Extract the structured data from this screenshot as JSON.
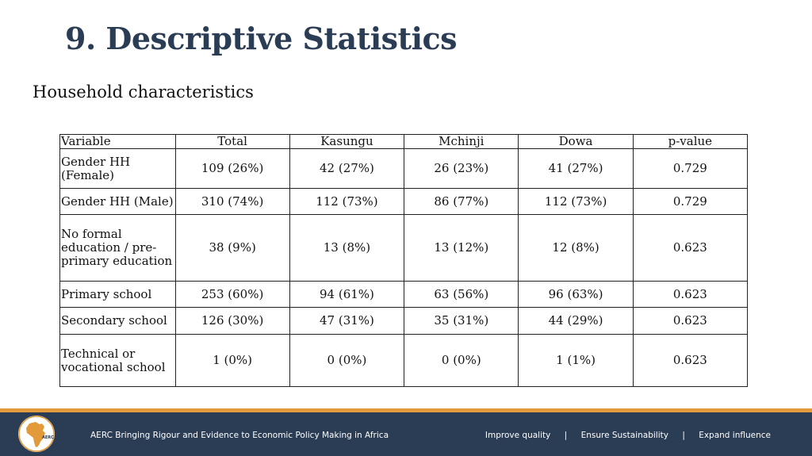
{
  "slide": {
    "title": "9. Descriptive Statistics",
    "subtitle": "Household characteristics"
  },
  "table": {
    "headers": [
      "Variable",
      "Total",
      "Kasungu",
      "Mchinji",
      "Dowa",
      "p-value"
    ],
    "rows": [
      [
        "Gender HH (Female)",
        "109 (26%)",
        "42 (27%)",
        "26 (23%)",
        "41 (27%)",
        "0.729"
      ],
      [
        "Gender HH (Male)",
        "310 (74%)",
        "112 (73%)",
        "86 (77%)",
        "112 (73%)",
        "0.729"
      ],
      [
        "No formal education / pre-primary education",
        "38 (9%)",
        "13 (8%)",
        "13 (12%)",
        "12 (8%)",
        "0.623"
      ],
      [
        "Primary school",
        "253 (60%)",
        "94 (61%)",
        "63 (56%)",
        "96 (63%)",
        "0.623"
      ],
      [
        "Secondary school",
        "126 (30%)",
        "47 (31%)",
        "35 (31%)",
        "44 (29%)",
        "0.623"
      ],
      [
        "Technical or vocational school",
        "1 (0%)",
        "0 (0%)",
        "0 (0%)",
        "1 (1%)",
        "0.623"
      ]
    ]
  },
  "footer": {
    "logo_text": "AERC",
    "tagline": "AERC Bringing Rigour and Evidence to Economic Policy Making in Africa",
    "links": [
      "Improve quality",
      "Ensure Sustainability",
      "Expand influence"
    ],
    "separator": "|"
  },
  "colors": {
    "title": "#2b3d55",
    "footer_bg": "#2b3d55",
    "accent": "#e39a3b"
  }
}
